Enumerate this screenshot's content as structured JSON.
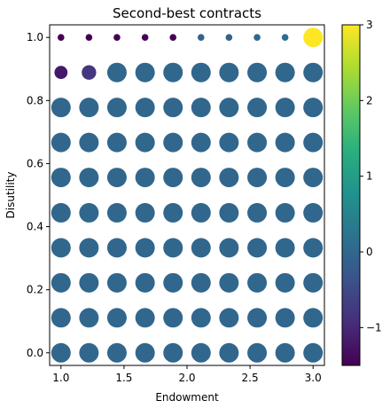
{
  "chart_data": {
    "type": "scatter",
    "title": "Second-best contracts",
    "xlabel": "Endowment",
    "ylabel": "Disutility",
    "xlim": [
      0.91,
      3.09
    ],
    "ylim": [
      -0.04,
      1.04
    ],
    "x_ticks": [
      1.0,
      1.5,
      2.0,
      2.5,
      3.0
    ],
    "x_tick_labels": [
      "1.0",
      "1.5",
      "2.0",
      "2.5",
      "3.0"
    ],
    "y_ticks": [
      0.0,
      0.2,
      0.4,
      0.6,
      0.8,
      1.0
    ],
    "y_tick_labels": [
      "0.0",
      "0.2",
      "0.4",
      "0.6",
      "0.8",
      "1.0"
    ],
    "grid": false,
    "colormap": "viridis",
    "colorbar": {
      "range": [
        -1.5,
        3
      ],
      "ticks": [
        -1,
        0,
        1,
        2,
        3
      ],
      "tick_labels": [
        "−1",
        "0",
        "1",
        "2",
        "3"
      ]
    },
    "x_values": [
      1.0,
      1.222,
      1.444,
      1.667,
      1.889,
      2.111,
      2.333,
      2.556,
      2.778,
      3.0
    ],
    "y_values": [
      0.0,
      0.111,
      0.222,
      0.333,
      0.444,
      0.556,
      0.667,
      0.778,
      0.889,
      1.0
    ],
    "default_point": {
      "value": 0.0,
      "size": 1.0
    },
    "special_points": [
      {
        "x": 1.0,
        "y": 1.0,
        "value": -1.5,
        "size": 0.12
      },
      {
        "x": 1.222,
        "y": 1.0,
        "value": -1.5,
        "size": 0.12
      },
      {
        "x": 1.444,
        "y": 1.0,
        "value": -1.5,
        "size": 0.12
      },
      {
        "x": 1.667,
        "y": 1.0,
        "value": -1.5,
        "size": 0.12
      },
      {
        "x": 1.889,
        "y": 1.0,
        "value": -1.5,
        "size": 0.12
      },
      {
        "x": 2.111,
        "y": 1.0,
        "value": -0.1,
        "size": 0.12
      },
      {
        "x": 2.333,
        "y": 1.0,
        "value": -0.1,
        "size": 0.12
      },
      {
        "x": 2.556,
        "y": 1.0,
        "value": 0.0,
        "size": 0.12
      },
      {
        "x": 2.778,
        "y": 1.0,
        "value": 0.1,
        "size": 0.12
      },
      {
        "x": 3.0,
        "y": 1.0,
        "value": 3.0,
        "size": 1.0
      },
      {
        "x": 1.0,
        "y": 0.889,
        "value": -1.2,
        "size": 0.45
      },
      {
        "x": 1.222,
        "y": 0.889,
        "value": -0.8,
        "size": 0.55
      }
    ]
  }
}
